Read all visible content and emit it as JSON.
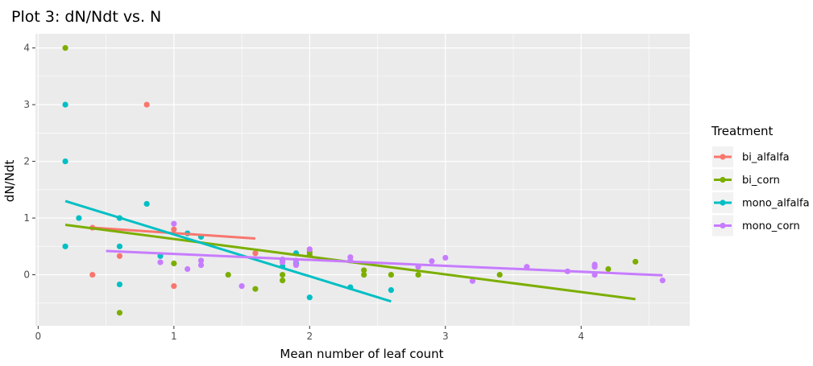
{
  "chart_data": {
    "type": "scatter",
    "title": "Plot 3: dN/Ndt vs. N",
    "xlabel": "Mean number of leaf count",
    "ylabel": "dN/Ndt",
    "xlim": [
      -0.02,
      4.8
    ],
    "ylim": [
      -0.9,
      4.25
    ],
    "x_ticks": [
      0,
      1,
      2,
      3,
      4
    ],
    "y_ticks": [
      0,
      1,
      2,
      3,
      4
    ],
    "x_tick_labels": [
      "0",
      "1",
      "2",
      "3",
      "4"
    ],
    "y_tick_labels": [
      "0",
      "1",
      "2",
      "3",
      "4"
    ],
    "grid": true,
    "legend": {
      "title": "Treatment",
      "position": "right"
    },
    "series": [
      {
        "name": "bi_alfalfa",
        "color": "#F8766D",
        "points": [
          [
            0.4,
            0.0
          ],
          [
            0.4,
            0.83
          ],
          [
            0.6,
            0.33
          ],
          [
            0.8,
            3.0
          ],
          [
            1.0,
            0.8
          ],
          [
            1.0,
            -0.2
          ],
          [
            1.6,
            0.38
          ]
        ],
        "fit": [
          [
            0.4,
            0.83
          ],
          [
            1.6,
            0.64
          ]
        ]
      },
      {
        "name": "bi_corn",
        "color": "#7CAE00",
        "points": [
          [
            0.2,
            4.0
          ],
          [
            0.6,
            -0.67
          ],
          [
            1.0,
            0.2
          ],
          [
            1.4,
            0.0
          ],
          [
            1.6,
            -0.25
          ],
          [
            1.8,
            -0.1
          ],
          [
            1.8,
            0.0
          ],
          [
            2.0,
            0.35
          ],
          [
            2.0,
            0.4
          ],
          [
            2.4,
            0.0
          ],
          [
            2.4,
            0.08
          ],
          [
            2.6,
            0.0
          ],
          [
            2.8,
            0.0
          ],
          [
            3.4,
            0.0
          ],
          [
            4.2,
            0.1
          ],
          [
            4.4,
            0.23
          ]
        ],
        "fit": [
          [
            0.2,
            0.88
          ],
          [
            4.4,
            -0.43
          ]
        ]
      },
      {
        "name": "mono_alfalfa",
        "color": "#00BFC4",
        "points": [
          [
            0.2,
            3.0
          ],
          [
            0.2,
            2.0
          ],
          [
            0.2,
            0.5
          ],
          [
            0.3,
            1.0
          ],
          [
            0.6,
            1.0
          ],
          [
            0.6,
            0.5
          ],
          [
            0.6,
            -0.17
          ],
          [
            0.8,
            1.25
          ],
          [
            0.9,
            0.33
          ],
          [
            1.1,
            0.73
          ],
          [
            1.2,
            0.67
          ],
          [
            1.8,
            0.15
          ],
          [
            1.8,
            0.25
          ],
          [
            1.9,
            0.2
          ],
          [
            1.9,
            0.38
          ],
          [
            2.0,
            -0.4
          ],
          [
            2.3,
            -0.22
          ],
          [
            2.6,
            -0.27
          ]
        ],
        "fit": [
          [
            0.2,
            1.3
          ],
          [
            2.6,
            -0.47
          ]
        ]
      },
      {
        "name": "mono_corn",
        "color": "#C77CFF",
        "points": [
          [
            0.9,
            0.22
          ],
          [
            1.0,
            0.9
          ],
          [
            1.1,
            0.1
          ],
          [
            1.2,
            0.17
          ],
          [
            1.2,
            0.25
          ],
          [
            1.5,
            -0.2
          ],
          [
            1.8,
            0.22
          ],
          [
            1.8,
            0.27
          ],
          [
            1.9,
            0.17
          ],
          [
            1.9,
            0.25
          ],
          [
            2.0,
            0.45
          ],
          [
            2.3,
            0.25
          ],
          [
            2.3,
            0.31
          ],
          [
            2.8,
            0.14
          ],
          [
            2.9,
            0.24
          ],
          [
            3.0,
            0.3
          ],
          [
            3.2,
            -0.11
          ],
          [
            3.6,
            0.14
          ],
          [
            3.9,
            0.06
          ],
          [
            4.1,
            0.0
          ],
          [
            4.1,
            0.14
          ],
          [
            4.1,
            0.18
          ],
          [
            4.6,
            -0.1
          ]
        ],
        "fit": [
          [
            0.5,
            0.42
          ],
          [
            4.6,
            -0.01
          ]
        ]
      }
    ]
  }
}
